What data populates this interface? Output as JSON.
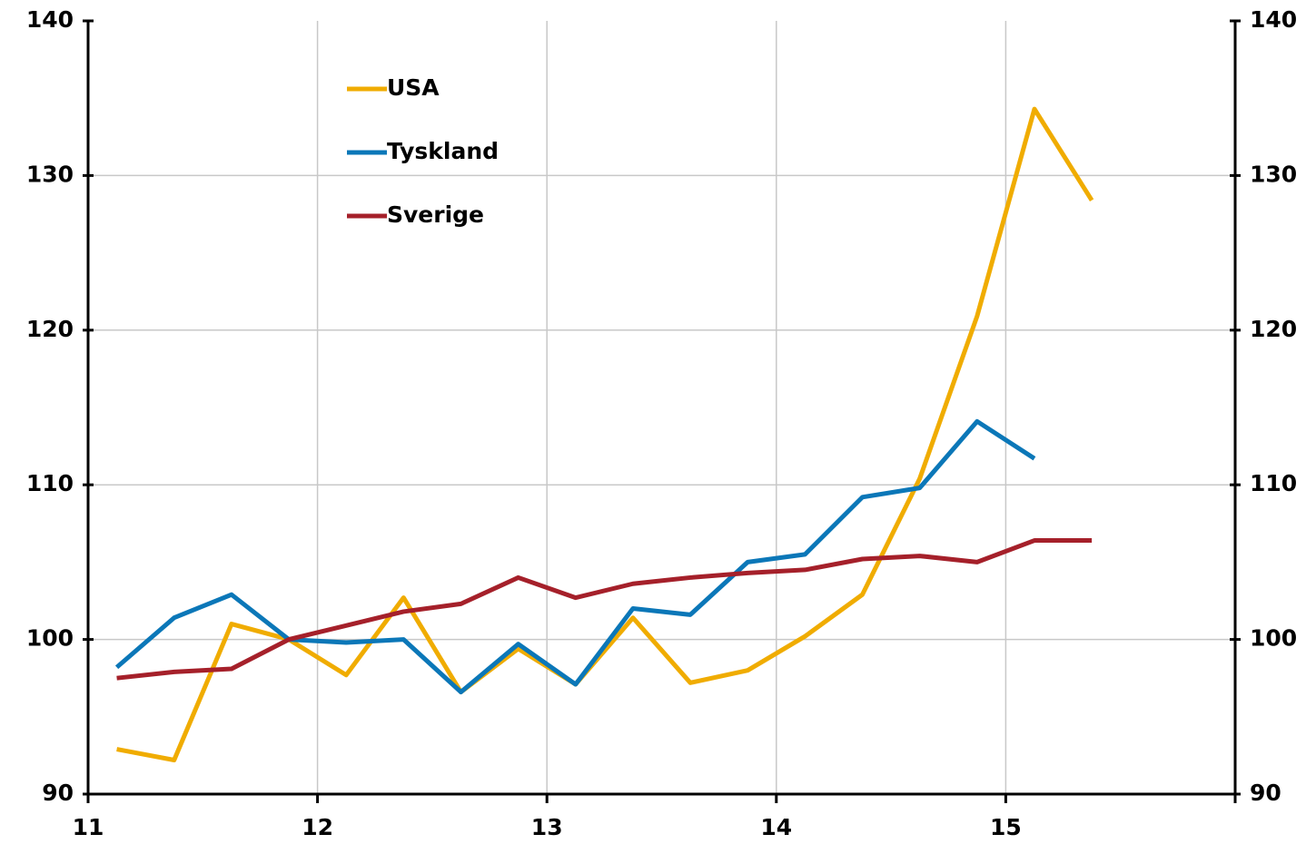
{
  "chart_data": {
    "type": "line",
    "x": [
      11.125,
      11.375,
      11.625,
      11.875,
      12.125,
      12.375,
      12.625,
      12.875,
      13.125,
      13.375,
      13.625,
      13.875,
      14.125,
      14.375,
      14.625,
      14.875,
      15.125,
      15.375
    ],
    "series": [
      {
        "name": "USA",
        "color": "#f0ac00",
        "values": [
          92.9,
          92.2,
          101.0,
          100.0,
          97.7,
          102.7,
          96.6,
          99.4,
          97.1,
          101.4,
          97.2,
          98.0,
          100.2,
          102.9,
          110.4,
          120.9,
          134.3,
          128.4
        ]
      },
      {
        "name": "Tyskland",
        "color": "#0b77b8",
        "values": [
          98.2,
          101.4,
          102.9,
          100.0,
          99.8,
          100.0,
          96.6,
          99.7,
          97.1,
          102.0,
          101.6,
          105.0,
          105.5,
          109.2,
          109.8,
          114.1,
          111.7,
          null
        ]
      },
      {
        "name": "Sverige",
        "color": "#a5202a",
        "values": [
          97.5,
          97.9,
          98.1,
          100.0,
          100.9,
          101.8,
          102.3,
          104.0,
          102.7,
          103.6,
          104.0,
          104.3,
          104.5,
          105.2,
          105.4,
          105.0,
          106.4,
          106.4
        ]
      }
    ],
    "xlim": [
      11,
      16
    ],
    "xticks": [
      11,
      12,
      13,
      14,
      15
    ],
    "ylim": [
      90,
      140
    ],
    "yticks": [
      90,
      100,
      110,
      120,
      130,
      140
    ],
    "y2lim": [
      90,
      140
    ],
    "y2ticks": [
      90,
      100,
      110,
      120,
      130,
      140
    ],
    "grid": true,
    "legend": "upper left"
  }
}
